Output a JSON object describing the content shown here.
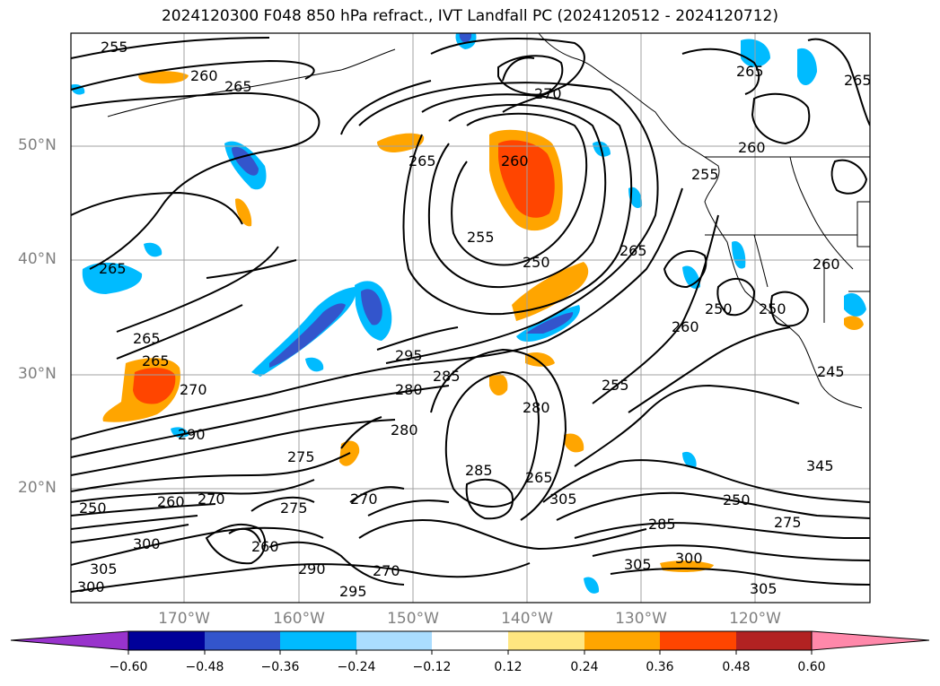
{
  "title": "2024120300 F048 850 hPa refract., IVT Landfall PC (2024120512 - 2024120712)",
  "latitude_labels": [
    "50°N",
    "40°N",
    "30°N",
    "20°N"
  ],
  "longitude_labels": [
    "170°W",
    "160°W",
    "150°W",
    "140°W",
    "130°W",
    "120°W"
  ],
  "colorbar": {
    "ticks": [
      "−0.60",
      "−0.48",
      "−0.36",
      "−0.24",
      "−0.12",
      "0.12",
      "0.24",
      "0.36",
      "0.48",
      "0.60"
    ],
    "colors": [
      "#9933cc",
      "#000099",
      "#3355cc",
      "#00bbff",
      "#aaddff",
      "#ffffff",
      "#ffe680",
      "#ffa500",
      "#ff4500",
      "#b22222",
      "#ff88aa"
    ]
  },
  "contour_labels": [
    "255",
    "260",
    "265",
    "270",
    "260",
    "250",
    "255",
    "265",
    "265",
    "265",
    "270",
    "265",
    "265",
    "290",
    "300",
    "305",
    "300",
    "295",
    "280",
    "285",
    "275",
    "280",
    "270",
    "285",
    "265",
    "280",
    "275",
    "260",
    "270",
    "270",
    "290",
    "295",
    "305",
    "305",
    "300",
    "285",
    "250",
    "275",
    "305",
    "345",
    "255",
    "250",
    "260",
    "250",
    "255",
    "260",
    "245",
    "260",
    "250",
    "265",
    "260",
    "265"
  ]
}
